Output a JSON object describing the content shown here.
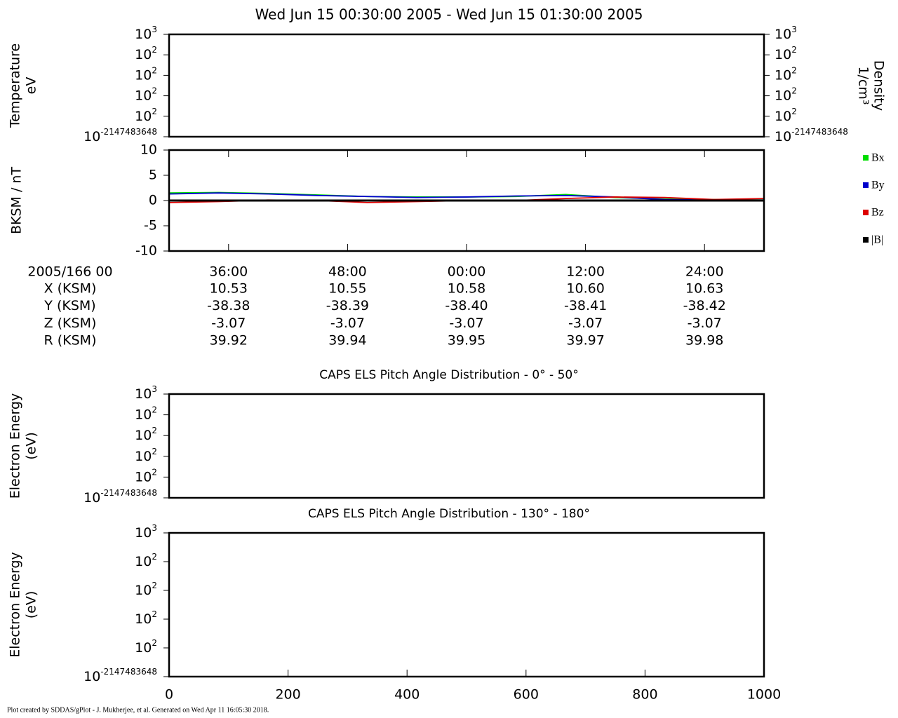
{
  "title": "Wed Jun 15 00:30:00 2005 - Wed Jun 15 01:30:00 2005",
  "chart_data": [
    {
      "type": "empty",
      "ylabel": [
        "Temperature",
        "eV"
      ],
      "y2label": [
        "Density",
        "1/cm³"
      ],
      "yticks": [
        {
          "label": "10",
          "sup": "3"
        },
        {
          "label": "10",
          "sup": "2"
        },
        {
          "label": "10",
          "sup": "2"
        },
        {
          "label": "10",
          "sup": "2"
        },
        {
          "label": "10",
          "sup": "2"
        },
        {
          "label": "10",
          "sup": "-2147483648"
        }
      ],
      "y2ticks": [
        {
          "label": "10",
          "sup": "3"
        },
        {
          "label": "10",
          "sup": "2"
        },
        {
          "label": "10",
          "sup": "2"
        },
        {
          "label": "10",
          "sup": "2"
        },
        {
          "label": "10",
          "sup": "2"
        },
        {
          "label": "10",
          "sup": "-2147483648"
        }
      ]
    },
    {
      "type": "line",
      "ylabel": "BKSM / nT",
      "xlim": [
        30,
        90
      ],
      "xticks": [
        {
          "value": 36,
          "label": "36:00"
        },
        {
          "value": 48,
          "label": "48:00"
        },
        {
          "value": 60,
          "label": "00:00"
        },
        {
          "value": 72,
          "label": "12:00"
        },
        {
          "value": 84,
          "label": "24:00"
        }
      ],
      "ylim": [
        -10,
        10
      ],
      "yticks": [
        -10,
        -5,
        0,
        5,
        10
      ],
      "legend": "right",
      "x": [
        30,
        35,
        40,
        45,
        50,
        55,
        60,
        65,
        70,
        75,
        80,
        85,
        90
      ],
      "series": [
        {
          "name": "Bx",
          "color": "#00dd00",
          "values": [
            1.5,
            1.6,
            1.4,
            1.1,
            0.8,
            0.7,
            0.7,
            0.8,
            1.2,
            0.6,
            0.3,
            0.2,
            0.1
          ]
        },
        {
          "name": "By",
          "color": "#0000cc",
          "values": [
            1.3,
            1.5,
            1.3,
            1.0,
            0.8,
            0.6,
            0.7,
            0.9,
            1.0,
            0.7,
            0.2,
            0.1,
            0.1
          ]
        },
        {
          "name": "Bz",
          "color": "#dd0000",
          "values": [
            -0.4,
            -0.2,
            0.1,
            0,
            -0.4,
            -0.2,
            0,
            0,
            0.4,
            0.7,
            0.6,
            0.2,
            0.4
          ]
        },
        {
          "name": "|B|",
          "color": "#000000",
          "values": [
            0,
            0,
            0,
            0,
            0,
            0,
            0,
            0,
            0,
            0,
            0,
            0,
            0
          ]
        }
      ],
      "ephemeris": {
        "header": "2005/166 00",
        "rows": [
          {
            "label": "X (KSM)",
            "values": [
              "10.53",
              "10.55",
              "10.58",
              "10.60",
              "10.63"
            ]
          },
          {
            "label": "Y (KSM)",
            "values": [
              "-38.38",
              "-38.39",
              "-38.40",
              "-38.41",
              "-38.42"
            ]
          },
          {
            "label": "Z (KSM)",
            "values": [
              "-3.07",
              "-3.07",
              "-3.07",
              "-3.07",
              "-3.07"
            ]
          },
          {
            "label": "R (KSM)",
            "values": [
              "39.92",
              "39.94",
              "39.95",
              "39.97",
              "39.98"
            ]
          }
        ]
      }
    },
    {
      "type": "empty",
      "title": "CAPS ELS Pitch Angle Distribution - 0° - 50°",
      "ylabel": [
        "Electron Energy",
        "(eV)"
      ],
      "yticks": [
        {
          "label": "10",
          "sup": "3"
        },
        {
          "label": "10",
          "sup": "2"
        },
        {
          "label": "10",
          "sup": "2"
        },
        {
          "label": "10",
          "sup": "2"
        },
        {
          "label": "10",
          "sup": "2"
        },
        {
          "label": "10",
          "sup": "-2147483648"
        }
      ]
    },
    {
      "type": "empty",
      "title": "CAPS ELS Pitch Angle Distribution - 130° - 180°",
      "ylabel": [
        "Electron Energy",
        "(eV)"
      ],
      "yticks": [
        {
          "label": "10",
          "sup": "3"
        },
        {
          "label": "10",
          "sup": "2"
        },
        {
          "label": "10",
          "sup": "2"
        },
        {
          "label": "10",
          "sup": "2"
        },
        {
          "label": "10",
          "sup": "2"
        },
        {
          "label": "10",
          "sup": "-2147483648"
        }
      ],
      "xlim": [
        0,
        1000
      ],
      "xticks": [
        0,
        200,
        400,
        600,
        800,
        1000
      ]
    }
  ],
  "footer": "Plot created by SDDAS/gPlot - J. Mukherjee, et al.  Generated on Wed Apr 11 16:05:30 2018."
}
